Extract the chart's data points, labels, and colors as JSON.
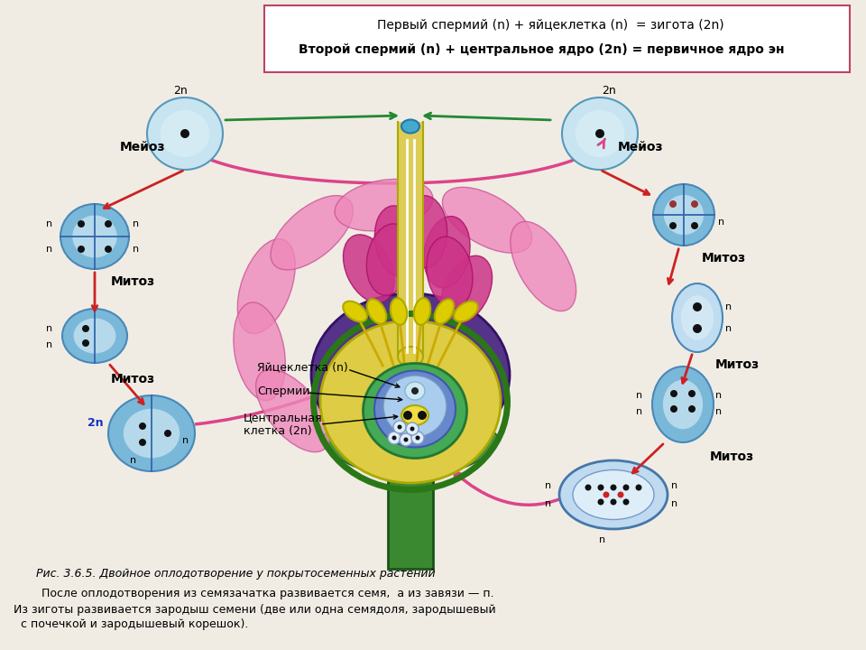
{
  "bg_color": "#f0ece4",
  "title_line1": "Первый спермий (n) + яйцеклетка (n)  = зигота (2n)",
  "title_line2": "Второй спермий (n) + центральное ядро (2n) = первичное ядро эн",
  "caption": "Рис. 3.6.5. Двойное оплодотворение у покрытосеменных растений",
  "text_bottom1": "    После оплодотворения из семязачатка развивается семя,  а из завязи — п.",
  "text_bottom2": "Из зиготы развивается зародыш семени (две или одна семядоля, зародышевый",
  "text_bottom3": "  с почечкой и зародышевый корешок).",
  "cell_blue_light": "#b8d8ed",
  "cell_blue_mid": "#7ab8d9",
  "cell_blue_dark": "#4a88b8",
  "cell_inner": "#d8eef8",
  "arrow_red": "#cc2222",
  "arrow_green": "#228833",
  "arrow_pink": "#dd4488",
  "dot_dark": "#111111",
  "dot_red": "#cc2222"
}
